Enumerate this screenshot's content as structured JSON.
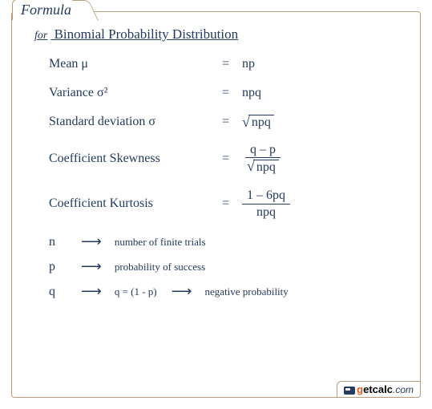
{
  "card": {
    "tab_label": "Formula",
    "heading_prefix": "for",
    "heading": "Binomial Probability Distribution",
    "border_color": "#b89a7a",
    "text_color": "#243a5e"
  },
  "formulas": {
    "mean": {
      "label": "Mean μ",
      "rhs": "np"
    },
    "variance": {
      "label": "Variance σ²",
      "rhs": "npq"
    },
    "stddev": {
      "label": "Standard deviation σ",
      "rhs_sqrt": "npq"
    },
    "skewness": {
      "label": "Coefficient Skewness",
      "num": "q – p",
      "den_sqrt": "npq"
    },
    "kurtosis": {
      "label": "Coefficient Kurtosis",
      "num": "1 – 6pq",
      "den": "npq"
    }
  },
  "legend": {
    "n": {
      "var": "n",
      "desc": "number of finite trials"
    },
    "p": {
      "var": "p",
      "desc": "probability of success"
    },
    "q": {
      "var": "q",
      "expr": "q = (1 - p)",
      "desc": "negative probability"
    }
  },
  "logo": {
    "brand_g": "g",
    "brand_et": "et",
    "brand_calc": "calc",
    "brand_com": ".com"
  }
}
